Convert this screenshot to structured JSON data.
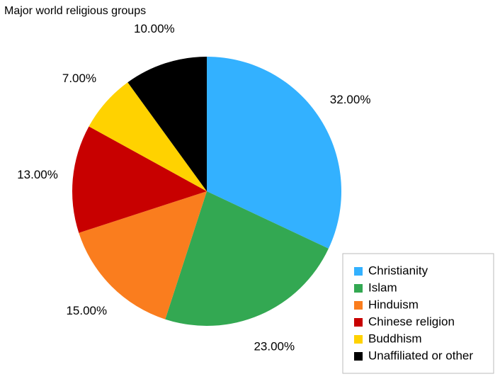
{
  "chart_data": {
    "type": "pie",
    "title": "Major world religious groups",
    "categories": [
      "Christianity",
      "Islam",
      "Hinduism",
      "Chinese religion",
      "Buddhism",
      "Unaffiliated or other"
    ],
    "values": [
      32,
      23,
      15,
      13,
      7,
      10
    ],
    "value_labels": [
      "32.00%",
      "23.00%",
      "15.00%",
      "13.00%",
      "7.00%",
      "10.00%"
    ],
    "colors": [
      "#33b1ff",
      "#33a852",
      "#fa7d1e",
      "#c80000",
      "#ffd200",
      "#000000"
    ]
  }
}
